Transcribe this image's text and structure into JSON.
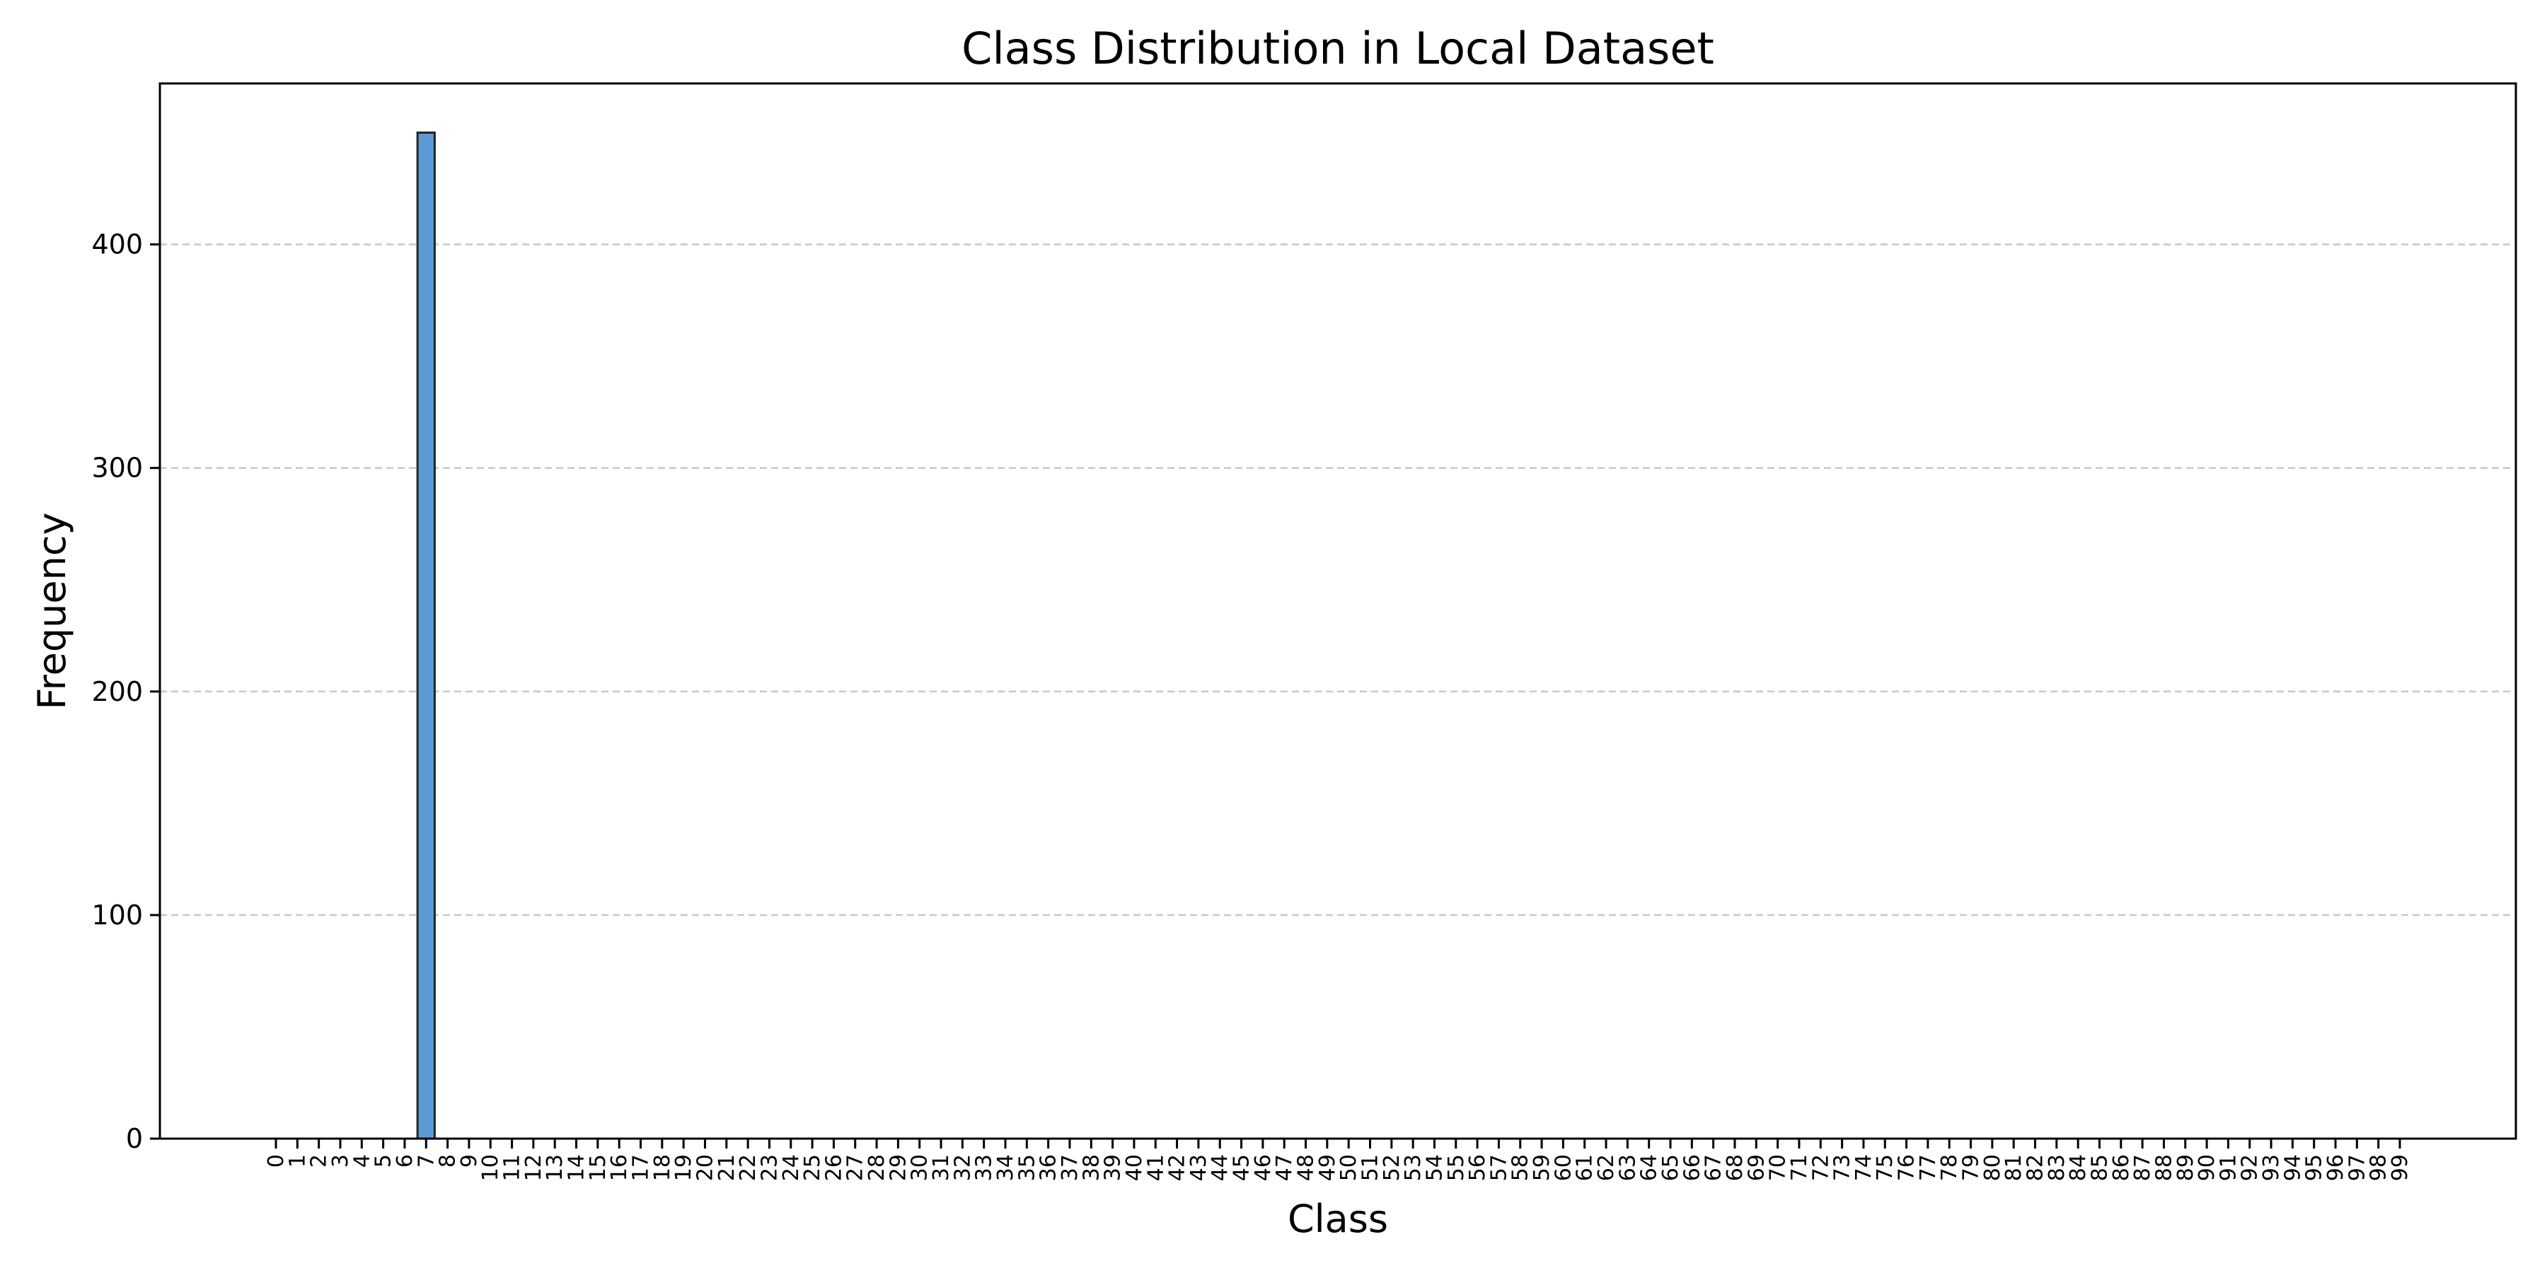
{
  "chart_data": {
    "type": "bar",
    "title": "Class Distribution in Local Dataset",
    "xlabel": "Class",
    "ylabel": "Frequency",
    "ylim": [
      0,
      472
    ],
    "yticks": [
      0,
      100,
      200,
      300,
      400
    ],
    "grid": "y",
    "categories": [
      "0",
      "1",
      "2",
      "3",
      "4",
      "5",
      "6",
      "7",
      "8",
      "9",
      "10",
      "11",
      "12",
      "13",
      "14",
      "15",
      "16",
      "17",
      "18",
      "19",
      "20",
      "21",
      "22",
      "23",
      "24",
      "25",
      "26",
      "27",
      "28",
      "29",
      "30",
      "31",
      "32",
      "33",
      "34",
      "35",
      "36",
      "37",
      "38",
      "39",
      "40",
      "41",
      "42",
      "43",
      "44",
      "45",
      "46",
      "47",
      "48",
      "49",
      "50",
      "51",
      "52",
      "53",
      "54",
      "55",
      "56",
      "57",
      "58",
      "59",
      "60",
      "61",
      "62",
      "63",
      "64",
      "65",
      "66",
      "67",
      "68",
      "69",
      "70",
      "71",
      "72",
      "73",
      "74",
      "75",
      "76",
      "77",
      "78",
      "79",
      "80",
      "81",
      "82",
      "83",
      "84",
      "85",
      "86",
      "87",
      "88",
      "89",
      "90",
      "91",
      "92",
      "93",
      "94",
      "95",
      "96",
      "97",
      "98",
      "99"
    ],
    "values": [
      0,
      0,
      0,
      0,
      0,
      0,
      0,
      450,
      0,
      0,
      0,
      0,
      0,
      0,
      0,
      0,
      0,
      0,
      0,
      0,
      0,
      0,
      0,
      0,
      0,
      0,
      0,
      0,
      0,
      0,
      0,
      0,
      0,
      0,
      0,
      0,
      0,
      0,
      0,
      0,
      0,
      0,
      0,
      0,
      0,
      0,
      0,
      0,
      0,
      0,
      0,
      0,
      0,
      0,
      0,
      0,
      0,
      0,
      0,
      0,
      0,
      0,
      0,
      0,
      0,
      0,
      0,
      0,
      0,
      0,
      0,
      0,
      0,
      0,
      0,
      0,
      0,
      0,
      0,
      0,
      0,
      0,
      0,
      0,
      0,
      0,
      0,
      0,
      0,
      0,
      0,
      0,
      0,
      0,
      0,
      0,
      0,
      0,
      0,
      0
    ],
    "colors": {
      "bar_fill": "#5b9bd5",
      "bar_edge": "#222222",
      "grid": "#c8c8c8",
      "axes": "#000000"
    }
  }
}
